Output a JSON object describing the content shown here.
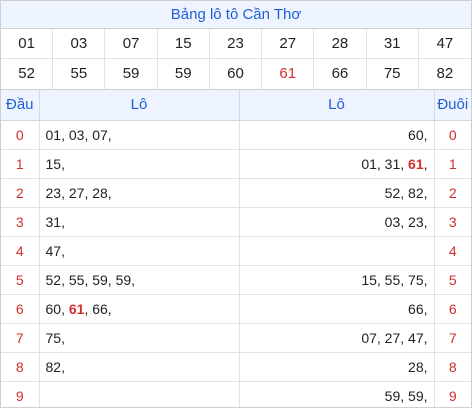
{
  "title": "Bảng lô tô Cần Thơ",
  "numbers": [
    {
      "value": "01",
      "highlight": false
    },
    {
      "value": "03",
      "highlight": false
    },
    {
      "value": "07",
      "highlight": false
    },
    {
      "value": "15",
      "highlight": false
    },
    {
      "value": "23",
      "highlight": false
    },
    {
      "value": "27",
      "highlight": false
    },
    {
      "value": "28",
      "highlight": false
    },
    {
      "value": "31",
      "highlight": false
    },
    {
      "value": "47",
      "highlight": false
    },
    {
      "value": "52",
      "highlight": false
    },
    {
      "value": "55",
      "highlight": false
    },
    {
      "value": "59",
      "highlight": false
    },
    {
      "value": "59",
      "highlight": false
    },
    {
      "value": "60",
      "highlight": false
    },
    {
      "value": "61",
      "highlight": true
    },
    {
      "value": "66",
      "highlight": false
    },
    {
      "value": "75",
      "highlight": false
    },
    {
      "value": "82",
      "highlight": false
    }
  ],
  "table": {
    "headers": {
      "dau": "Đầu",
      "lo_left": "Lô",
      "lo_right": "Lô",
      "duoi": "Đuôi"
    },
    "rows": [
      {
        "dau": "0",
        "left": [
          {
            "t": "01"
          },
          {
            "t": "03"
          },
          {
            "t": "07"
          }
        ],
        "right": [
          {
            "t": "60"
          }
        ],
        "duoi": "0"
      },
      {
        "dau": "1",
        "left": [
          {
            "t": "15"
          }
        ],
        "right": [
          {
            "t": "01"
          },
          {
            "t": "31"
          },
          {
            "t": "61",
            "hl": true
          }
        ],
        "duoi": "1"
      },
      {
        "dau": "2",
        "left": [
          {
            "t": "23"
          },
          {
            "t": "27"
          },
          {
            "t": "28"
          }
        ],
        "right": [
          {
            "t": "52"
          },
          {
            "t": "82"
          }
        ],
        "duoi": "2"
      },
      {
        "dau": "3",
        "left": [
          {
            "t": "31"
          }
        ],
        "right": [
          {
            "t": "03"
          },
          {
            "t": "23"
          }
        ],
        "duoi": "3"
      },
      {
        "dau": "4",
        "left": [
          {
            "t": "47"
          }
        ],
        "right": [],
        "duoi": "4"
      },
      {
        "dau": "5",
        "left": [
          {
            "t": "52"
          },
          {
            "t": "55"
          },
          {
            "t": "59"
          },
          {
            "t": "59"
          }
        ],
        "right": [
          {
            "t": "15"
          },
          {
            "t": "55"
          },
          {
            "t": "75"
          }
        ],
        "duoi": "5"
      },
      {
        "dau": "6",
        "left": [
          {
            "t": "60"
          },
          {
            "t": "61",
            "hl": true
          },
          {
            "t": "66"
          }
        ],
        "right": [
          {
            "t": "66"
          }
        ],
        "duoi": "6"
      },
      {
        "dau": "7",
        "left": [
          {
            "t": "75"
          }
        ],
        "right": [
          {
            "t": "07"
          },
          {
            "t": "27"
          },
          {
            "t": "47"
          }
        ],
        "duoi": "7"
      },
      {
        "dau": "8",
        "left": [
          {
            "t": "82"
          }
        ],
        "right": [
          {
            "t": "28"
          }
        ],
        "duoi": "8"
      },
      {
        "dau": "9",
        "left": [],
        "right": [
          {
            "t": "59"
          },
          {
            "t": "59"
          }
        ],
        "duoi": "9"
      }
    ]
  }
}
